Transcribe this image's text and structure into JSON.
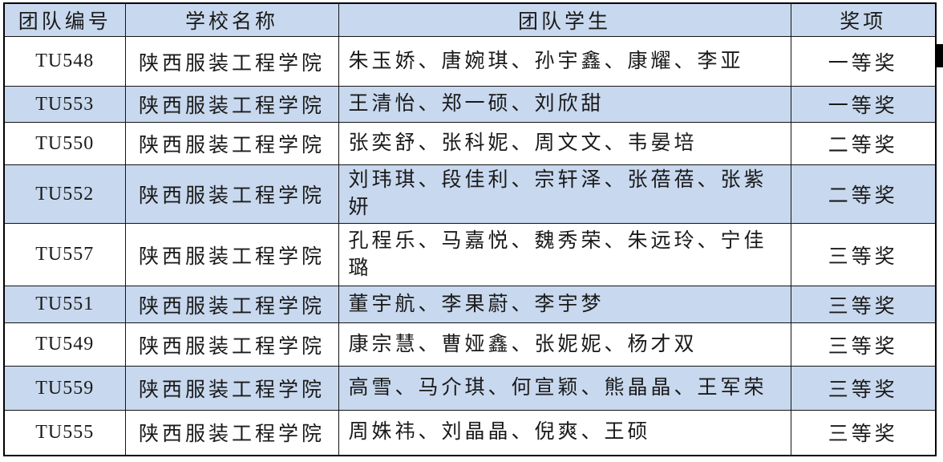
{
  "table": {
    "headers": {
      "team_id": "团队编号",
      "school": "学校名称",
      "students": "团队学生",
      "award": "奖项"
    },
    "rows": [
      {
        "team_id": "TU548",
        "school": "陕西服装工程学院",
        "students": "朱玉娇、唐婉琪、孙宇鑫、康耀、李亚",
        "award": "一等奖",
        "highlighted": false
      },
      {
        "team_id": "TU553",
        "school": "陕西服装工程学院",
        "students": "王清怡、郑一硕、刘欣甜",
        "award": "一等奖",
        "highlighted": true
      },
      {
        "team_id": "TU550",
        "school": "陕西服装工程学院",
        "students": "张奕舒、张科妮、周文文、韦晏培",
        "award": "二等奖",
        "highlighted": false
      },
      {
        "team_id": "TU552",
        "school": "陕西服装工程学院",
        "students": "刘玮琪、段佳利、宗轩泽、张蓓蓓、张紫妍",
        "award": "二等奖",
        "highlighted": true
      },
      {
        "team_id": "TU557",
        "school": "陕西服装工程学院",
        "students": "孔程乐、马嘉悦、魏秀荣、朱远玲、宁佳璐",
        "award": "三等奖",
        "highlighted": false
      },
      {
        "team_id": "TU551",
        "school": "陕西服装工程学院",
        "students": "董宇航、李果蔚、李宇梦",
        "award": "三等奖",
        "highlighted": true
      },
      {
        "team_id": "TU549",
        "school": "陕西服装工程学院",
        "students": "康宗慧、曹娅鑫、张妮妮、杨才双",
        "award": "三等奖",
        "highlighted": false
      },
      {
        "team_id": "TU559",
        "school": "陕西服装工程学院",
        "students": "高雪、马介琪、何宣颖、熊晶晶、王军荣",
        "award": "三等奖",
        "highlighted": true
      },
      {
        "team_id": "TU555",
        "school": "陕西服装工程学院",
        "students": "周姝祎、刘晶晶、倪爽、王硕",
        "award": "三等奖",
        "highlighted": false
      }
    ]
  },
  "colors": {
    "highlight_blue": "#c8d8ee",
    "row_white": "#ffffff",
    "border_black": "#141414",
    "text_black": "#1a1a1a"
  }
}
